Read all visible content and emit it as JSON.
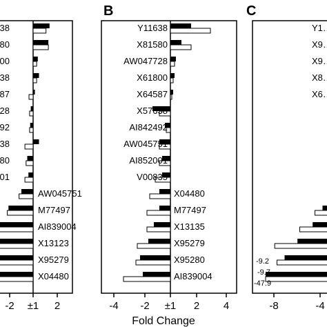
{
  "xlabel": "Fold Change",
  "chart_data": [
    {
      "panel": "A",
      "type": "bar",
      "orientation": "horizontal",
      "x_ticks": [
        "-2",
        "±1",
        "2"
      ],
      "xlim": [
        -3.5,
        2.6
      ],
      "rows": [
        {
          "label": "…38",
          "filled": 1.4,
          "open": 1.1
        },
        {
          "label": "…80",
          "filled": 1.3,
          "open": 1.3
        },
        {
          "label": "…800",
          "filled": 0.4,
          "open": 0.3
        },
        {
          "label": "…38",
          "filled": 0.5,
          "open": 0.3
        },
        {
          "label": "…87",
          "filled": 0.15,
          "open": -0.35
        },
        {
          "label": "…47728",
          "filled": -0.2,
          "open": -0.3
        },
        {
          "label": "…2492",
          "filled": -0.25,
          "open": -0.3
        },
        {
          "label": "…38",
          "filled": 0.5,
          "open": -0.7
        },
        {
          "label": "…80",
          "filled": -0.5,
          "open": -0.6
        },
        {
          "label": "…2001",
          "filled": -0.4,
          "open": -0.7
        },
        {
          "label": "AW045751",
          "filled": -1.0,
          "open": -1.2
        },
        {
          "label": "M77497",
          "filled": -2.1,
          "open": -2.2
        },
        {
          "label": "AI839004",
          "filled": -3.0,
          "open": -3.1
        },
        {
          "label": "X13123",
          "filled": -3.3,
          "open": -3.3
        },
        {
          "label": "X95279",
          "filled": -3.3,
          "open": -3.0
        },
        {
          "label": "X04480",
          "filled": -3.3,
          "open": -3.3
        }
      ]
    },
    {
      "panel": "B",
      "type": "bar",
      "orientation": "horizontal",
      "x_ticks": [
        "-4",
        "-2",
        "±1",
        "2",
        "4"
      ],
      "xlim": [
        -4.3,
        4.3
      ],
      "rows": [
        {
          "label": "Y11638",
          "filled": 1.5,
          "open": 2.9
        },
        {
          "label": "X81580",
          "filled": 0.8,
          "open": 1.5
        },
        {
          "label": "AW047728",
          "filled": 0.4,
          "open": 0.3
        },
        {
          "label": "X61800",
          "filled": 0.3,
          "open": 0.2
        },
        {
          "label": "X64587",
          "filled": 0.2,
          "open": 0.1
        },
        {
          "label": "X57638",
          "filled": -1.3,
          "open": -0.8
        },
        {
          "label": "AI842492",
          "filled": -0.4,
          "open": -0.3
        },
        {
          "label": "AW045751",
          "filled": -0.8,
          "open": -0.8
        },
        {
          "label": "AI852001",
          "filled": -0.6,
          "open": -0.8
        },
        {
          "label": "V00835",
          "filled": -0.6,
          "open": -1.1
        },
        {
          "label": "X04480",
          "filled": -0.8,
          "open": -1.5
        },
        {
          "label": "M77497",
          "filled": -0.8,
          "open": -1.7
        },
        {
          "label": "X13135",
          "filled": -1.2,
          "open": -1.7
        },
        {
          "label": "X95279",
          "filled": -1.6,
          "open": -2.4
        },
        {
          "label": "X95280",
          "filled": -2.2,
          "open": -2.5
        },
        {
          "label": "AI839004",
          "filled": -2.0,
          "open": -3.4
        }
      ]
    },
    {
      "panel": "C",
      "type": "bar",
      "orientation": "horizontal",
      "x_ticks": [
        "-8",
        "-4"
      ],
      "xlim": [
        -9.0,
        0
      ],
      "rows": [
        {
          "label": "Y1…",
          "filled": 0,
          "open": 0
        },
        {
          "label": "X9…",
          "filled": 0,
          "open": 0
        },
        {
          "label": "X9…",
          "filled": 0,
          "open": 0
        },
        {
          "label": "X8…",
          "filled": 0,
          "open": 0
        },
        {
          "label": "X6…",
          "filled": 0,
          "open": 0
        },
        {
          "label": "",
          "filled": 0,
          "open": 0
        },
        {
          "label": "",
          "filled": 0,
          "open": 0
        },
        {
          "label": "",
          "filled": 0,
          "open": 0
        },
        {
          "label": "",
          "filled": 0,
          "open": 0
        },
        {
          "label": "",
          "filled": 0,
          "open": 0
        },
        {
          "label": "",
          "filled": -0.4,
          "open": -0.3
        },
        {
          "label": "",
          "filled": -1.5,
          "open": -2.5
        },
        {
          "label": "",
          "filled": -2.8,
          "open": -4.5
        },
        {
          "label": "",
          "filled": -4.8,
          "open": -7.8
        },
        {
          "label": "",
          "filled": -6.5,
          "open": -7.5
        },
        {
          "label": "",
          "filled": -9.0,
          "open": -9.0
        }
      ],
      "annotations": [
        "-9.2",
        "-9.7",
        "-47.9"
      ]
    }
  ]
}
